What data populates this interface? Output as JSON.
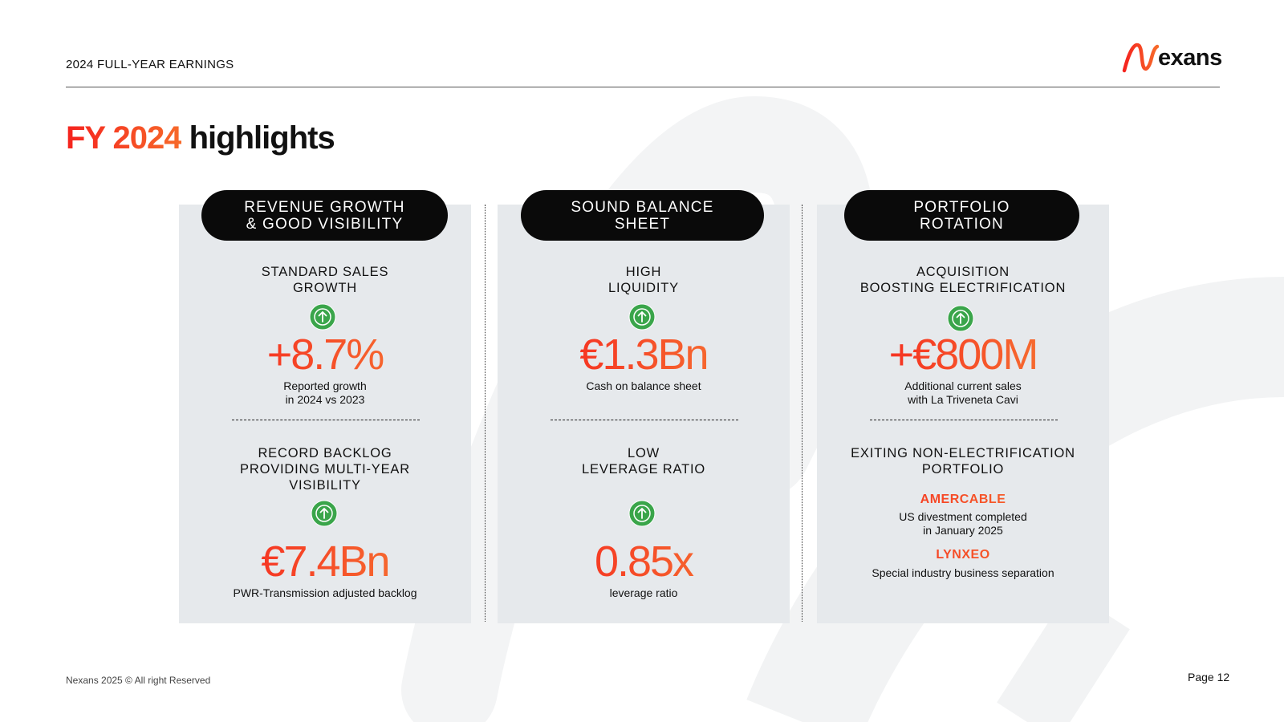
{
  "header": {
    "label": "2024 FULL-YEAR EARNINGS",
    "logo_text": "exans"
  },
  "title": {
    "accent": "FY 2024",
    "rest": "highlights"
  },
  "colors": {
    "accent_red": "#f5231e",
    "accent_orange": "#f77a33",
    "panel_bg": "#e6e9ec",
    "pill_bg": "#0a0a0a",
    "arrow_green": "#3aa54a"
  },
  "icons": {
    "up_arrow": "arrow-up-circle-icon"
  },
  "columns": [
    {
      "pill": [
        "REVENUE GROWTH",
        "& GOOD VISIBILITY"
      ],
      "top": {
        "heading": [
          "STANDARD SALES",
          "GROWTH"
        ],
        "value": "+8.7%",
        "caption": [
          "Reported growth",
          "in 2024 vs 2023"
        ]
      },
      "bottom": {
        "heading": [
          "RECORD BACKLOG",
          "PROVIDING MULTI-YEAR",
          "VISIBILITY"
        ],
        "value": "€7.4Bn",
        "caption": [
          "PWR-Transmission adjusted backlog"
        ]
      }
    },
    {
      "pill": [
        "SOUND BALANCE",
        "SHEET"
      ],
      "top": {
        "heading": [
          "HIGH",
          "LIQUIDITY"
        ],
        "value": "€1.3Bn",
        "caption": [
          "Cash on balance sheet"
        ]
      },
      "bottom": {
        "heading": [
          "LOW",
          "LEVERAGE RATIO"
        ],
        "value": "0.85x",
        "caption": [
          "leverage ratio"
        ]
      }
    },
    {
      "pill": [
        "PORTFOLIO",
        "ROTATION"
      ],
      "top": {
        "heading": [
          "ACQUISITION",
          "BOOSTING ELECTRIFICATION"
        ],
        "value": "+€800M",
        "caption": [
          "Additional current sales",
          "with La Triveneta Cavi"
        ]
      },
      "bottom": {
        "heading": [
          "EXITING NON-ELECTRIFICATION",
          "PORTFOLIO"
        ],
        "brands": [
          {
            "name": "AMERCABLE",
            "caption": [
              "US divestment completed",
              "in January 2025"
            ]
          },
          {
            "name": "LYNXEO",
            "caption": [
              "Special industry business separation"
            ]
          }
        ]
      }
    }
  ],
  "footer": {
    "copyright": "Nexans 2025 © All right Reserved",
    "page": "Page 12"
  }
}
